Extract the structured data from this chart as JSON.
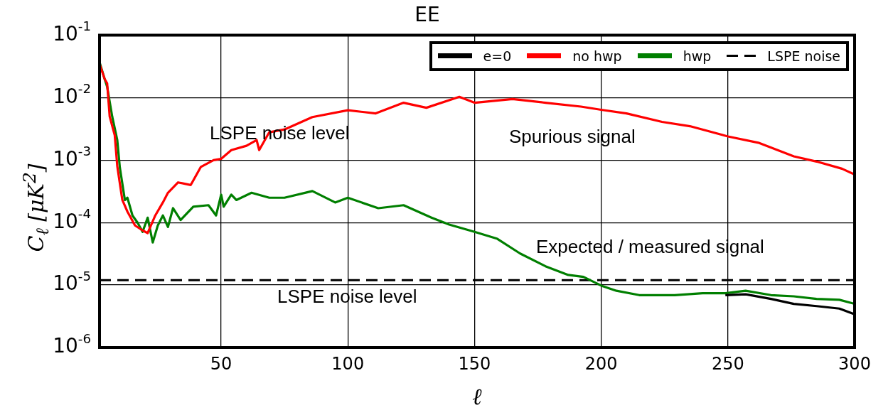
{
  "chart_data": {
    "type": "line",
    "title": "EE",
    "xlabel": "ℓ",
    "ylabel": "C$_{ℓ}$  [μK$^{2}$]",
    "xlim": [
      2,
      300
    ],
    "xticks": [
      50,
      100,
      150,
      200,
      250,
      300
    ],
    "ylim": [
      1e-06,
      0.1
    ],
    "yticks": [
      {
        "value": 1e-06,
        "label": "10$^{-6}$"
      },
      {
        "value": 1e-05,
        "label": "10$^{-5}$"
      },
      {
        "value": 0.0001,
        "label": "10$^{-4}$"
      },
      {
        "value": 0.001,
        "label": "10$^{-3}$"
      },
      {
        "value": 0.01,
        "label": "10$^{-2}$"
      },
      {
        "value": 0.1,
        "label": "10$^{-1}$"
      }
    ],
    "log": "y",
    "grid": true,
    "legend": "top right",
    "marker": "none",
    "series": [
      {
        "name": "e=0",
        "color": "#000000",
        "x": [
          249,
          257,
          267,
          276,
          285,
          294,
          300
        ],
        "values": [
          6.9e-06,
          7.1e-06,
          6e-06,
          5e-06,
          4.6e-06,
          4.2e-06,
          3.4e-06
        ]
      },
      {
        "name": "no hwp",
        "color": "#ff0000",
        "x": [
          2,
          4,
          5,
          6,
          8,
          9,
          11,
          13,
          16,
          19,
          21,
          24,
          27,
          29,
          33,
          38,
          42,
          47,
          50,
          54,
          60,
          64,
          65,
          69,
          75,
          86,
          100,
          111,
          122,
          131,
          144,
          150,
          165,
          178,
          192,
          200,
          210,
          224,
          235,
          250,
          262,
          276,
          285,
          295,
          300
        ],
        "values": [
          0.035,
          0.02,
          0.017,
          0.005,
          0.0025,
          0.0008,
          0.00023,
          0.00015,
          9e-05,
          7.5e-05,
          6.8e-05,
          0.00013,
          0.00021,
          0.0003,
          0.00044,
          0.0004,
          0.00078,
          0.001,
          0.00105,
          0.00145,
          0.0017,
          0.0021,
          0.00145,
          0.0028,
          0.0031,
          0.0049,
          0.0063,
          0.0056,
          0.0083,
          0.0069,
          0.0103,
          0.0083,
          0.0095,
          0.0083,
          0.0072,
          0.0064,
          0.0056,
          0.0041,
          0.0035,
          0.0024,
          0.0019,
          0.00115,
          0.00095,
          0.00073,
          0.00059
        ]
      },
      {
        "name": "hwp",
        "color": "#007f00",
        "x": [
          2,
          4,
          5,
          7,
          9,
          10,
          12,
          13,
          15,
          17,
          19,
          21,
          23,
          25,
          27,
          29,
          31,
          34,
          39,
          45,
          48,
          50,
          51,
          54,
          56,
          62,
          69,
          75,
          86,
          95,
          100,
          112,
          122,
          133,
          140,
          150,
          159,
          168,
          178,
          187,
          193,
          200,
          206,
          215,
          229,
          240,
          249,
          257,
          267,
          276,
          285,
          294,
          300
        ],
        "values": [
          0.037,
          0.02,
          0.015,
          0.005,
          0.0021,
          0.00077,
          0.00023,
          0.00025,
          0.00013,
          0.0001,
          7.1e-05,
          0.00012,
          4.8e-05,
          9e-05,
          0.00013,
          8.5e-05,
          0.00017,
          0.00011,
          0.00018,
          0.00019,
          0.00013,
          0.00028,
          0.00018,
          0.00028,
          0.00023,
          0.0003,
          0.00025,
          0.00025,
          0.00032,
          0.00021,
          0.00025,
          0.00017,
          0.00019,
          0.00012,
          9.3e-05,
          7.1e-05,
          5.5e-05,
          3.2e-05,
          2e-05,
          1.45e-05,
          1.35e-05,
          9.8e-06,
          8.1e-06,
          6.9e-06,
          6.9e-06,
          7.4e-06,
          7.4e-06,
          8.1e-06,
          6.9e-06,
          6.6e-06,
          6e-06,
          5.8e-06,
          5e-06
        ]
      },
      {
        "name": "LSPE noise",
        "color": "#000000",
        "line_style": "dashed",
        "x": [
          2,
          300
        ],
        "values": [
          1.2e-05,
          1.2e-05
        ]
      }
    ],
    "annotations": [
      "LSPE noise level",
      "Spurious signal",
      "Expected / measured signal",
      "LSPE noise level"
    ]
  }
}
